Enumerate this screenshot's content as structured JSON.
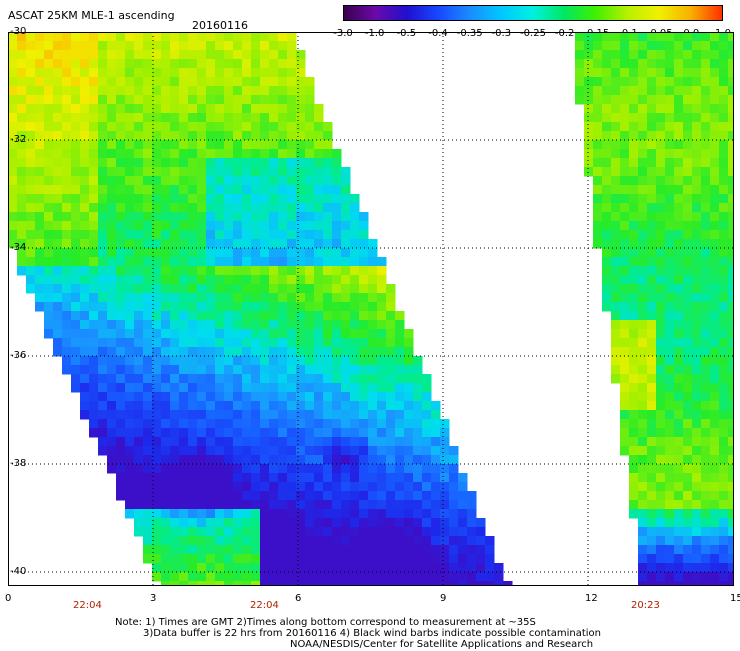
{
  "header": {
    "title": "ASCAT 25KM MLE-1 ascending",
    "date": "20160116"
  },
  "colorbar": {
    "ticks": [
      "-3.0",
      "-1.0",
      "-0.5",
      "-0.4",
      "-0.35",
      "-0.3",
      "-0.25",
      "-0.2",
      "-0.15",
      "-0.1",
      "-0.05",
      "0.0",
      "1.0"
    ],
    "colors": [
      "#3a0050",
      "#6a0aa8",
      "#2010d0",
      "#1848ff",
      "#1a8cff",
      "#00c8ff",
      "#00f0e0",
      "#00e860",
      "#40f000",
      "#b8f000",
      "#f0f000",
      "#f8b000",
      "#ff3000"
    ]
  },
  "axes": {
    "lat_labels": [
      "-30",
      "-32",
      "-34",
      "-36",
      "-38",
      "-40"
    ],
    "lon_labels": [
      "0",
      "3",
      "6",
      "9",
      "12",
      "15"
    ],
    "time_labels": [
      "22:04",
      "22:04",
      "20:23"
    ]
  },
  "notes": {
    "line1": "Note: 1) Times are GMT 2)Times along bottom correspond to measurement at ~35S",
    "line2": "3)Data buffer is 22 hrs from 20160116 4) Black wind barbs indicate possible contamination",
    "line3": "NOAA/NESDIS/Center for Satellite Applications and Research"
  }
}
